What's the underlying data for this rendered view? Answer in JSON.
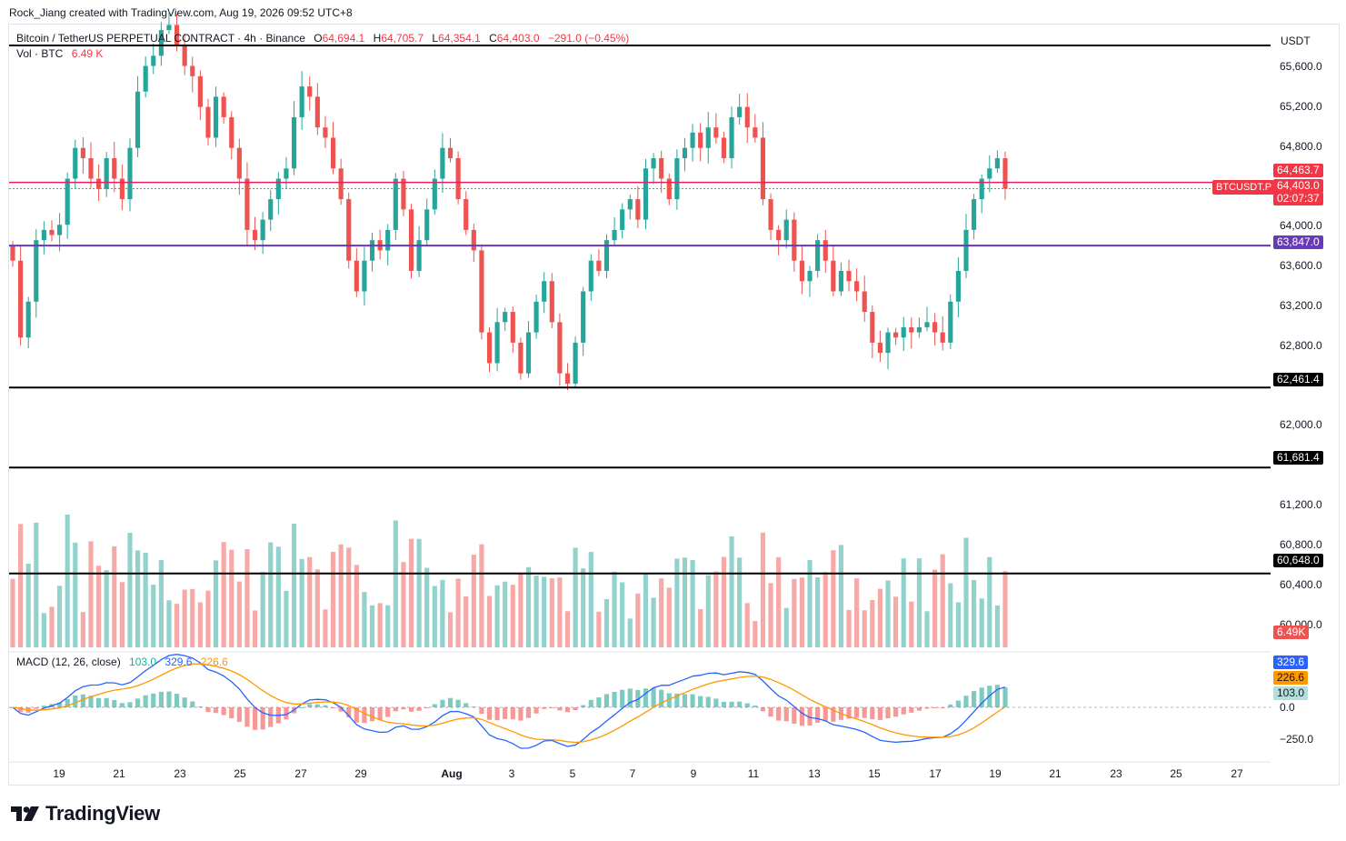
{
  "credit": "Rock_Jiang created with TradingView.com, Aug 19, 2026 09:52 UTC+8",
  "symbol": {
    "name": "Bitcoin / TetherUS PERPETUAL CONTRACT · 4h · Binance",
    "o_label": "O",
    "o_value": "64,694.1",
    "h_label": "H",
    "h_value": "64,705.7",
    "l_label": "L",
    "l_value": "64,354.1",
    "c_label": "C",
    "c_value": "64,403.0",
    "change": "−291.0 (−0.45%)"
  },
  "volume_legend": {
    "label": "Vol · BTC",
    "value": "6.49 K"
  },
  "macd_legend": {
    "label": "MACD (12, 26, close)",
    "hist": "103.0",
    "macd": "329.6",
    "signal": "226.6"
  },
  "currency": "USDT",
  "price_axis": [
    "65,600.0",
    "65,200.0",
    "64,800.0",
    "64,000.0",
    "63,600.0",
    "63,200.0",
    "62,800.0",
    "62,000.0",
    "61,200.0",
    "60,800.0",
    "60,400.0",
    "60,000.0"
  ],
  "macd_axis": [
    "0.0",
    "−250.0"
  ],
  "badges": {
    "level_high": "64,463.7",
    "last_price": "64,403.0",
    "countdown": "02:07:37",
    "level_purple": "63,847.0",
    "level_62461": "62,461.4",
    "level_61681": "61,681.4",
    "level_60648": "60,648.0",
    "volume": "6.49K",
    "macd": "329.6",
    "signal": "226.6",
    "hist": "103.0",
    "symbol_tag": "BTCUSDT.P"
  },
  "date_axis": [
    "19",
    "21",
    "23",
    "25",
    "27",
    "29",
    "Aug",
    "3",
    "5",
    "7",
    "9",
    "11",
    "13",
    "15",
    "17",
    "19",
    "21",
    "23",
    "25",
    "27"
  ],
  "logo_text": "TradingView",
  "colors": {
    "up": "#26a69a",
    "down": "#ef5350",
    "level_line": "#000000",
    "purple_line": "#673ab7",
    "price_line": "#e91e63",
    "macd_line": "#2962ff",
    "signal_line": "#ff9800"
  },
  "chart_data": {
    "type": "candlestick",
    "title": "Bitcoin / TetherUS PERPETUAL CONTRACT · 4h · Binance",
    "ylim": [
      59900,
      65800
    ],
    "horizontal_levels": [
      64463.7,
      63847.0,
      62461.4,
      61681.4,
      60648.0
    ],
    "closes": [
      63700,
      62950,
      63300,
      63900,
      64000,
      63950,
      64050,
      64500,
      64800,
      64700,
      64500,
      64400,
      64700,
      64500,
      64300,
      64800,
      65350,
      65600,
      65700,
      65950,
      66000,
      65800,
      65600,
      65500,
      65200,
      64900,
      65300,
      65100,
      64800,
      64500,
      64000,
      63900,
      64100,
      64300,
      64500,
      64600,
      65100,
      65400,
      65300,
      65000,
      64900,
      64600,
      64300,
      63700,
      63400,
      63700,
      63900,
      63800,
      64000,
      64500,
      64200,
      63600,
      63900,
      64200,
      64500,
      64800,
      64700,
      64300,
      64000,
      63800,
      63000,
      62700,
      63100,
      63200,
      62900,
      62600,
      63000,
      63300,
      63500,
      63100,
      62600,
      62500,
      62900,
      63400,
      63700,
      63600,
      63900,
      64000,
      64200,
      64300,
      64100,
      64600,
      64700,
      64500,
      64300,
      64700,
      64800,
      64950,
      64800,
      65000,
      64900,
      64700,
      65100,
      65200,
      65000,
      64900,
      64300,
      64000,
      63900,
      64100,
      63700,
      63500,
      63600,
      63900,
      63700,
      63400,
      63600,
      63500,
      63400,
      63200,
      62900,
      62800,
      63000,
      62950,
      63050,
      63000,
      63050,
      63100,
      63000,
      62900,
      63300,
      63600,
      64000,
      64300,
      64500,
      64600,
      64700,
      64403
    ]
  }
}
